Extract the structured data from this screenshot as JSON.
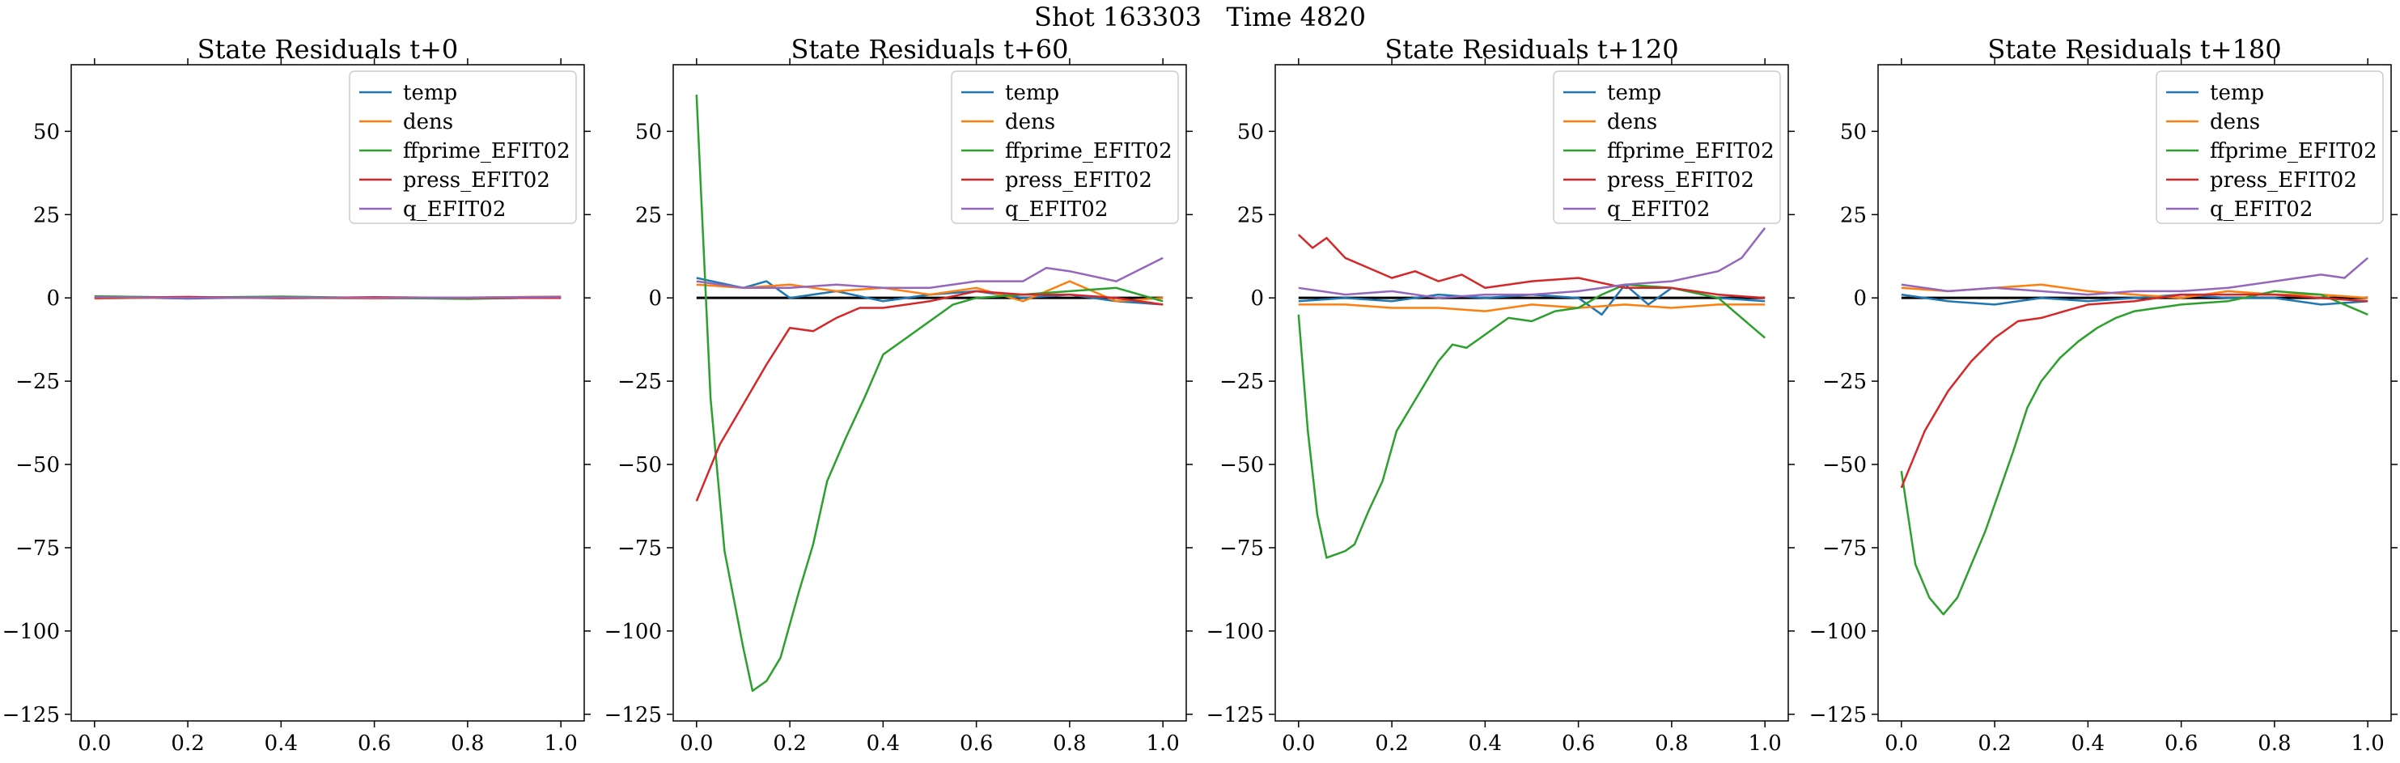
{
  "figure_title": "Shot 163303   Time 4820",
  "chart_data": [
    {
      "type": "line",
      "title": "State Residuals t+0",
      "xlabel": "",
      "ylabel": "",
      "xlim": [
        -0.05,
        1.05
      ],
      "ylim": [
        -127,
        70
      ],
      "xticks": [
        "0.0",
        "0.2",
        "0.4",
        "0.6",
        "0.8",
        "1.0"
      ],
      "yticks": [
        "50",
        "25",
        "0",
        "−25",
        "−50",
        "−75",
        "−100",
        "−125"
      ],
      "grid": false,
      "legend": "top-right",
      "series": [
        {
          "name": "temp",
          "color": "#1f77b4",
          "x": [
            0,
            0.2,
            0.4,
            0.6,
            0.8,
            1.0
          ],
          "y": [
            0.3,
            -0.2,
            0.2,
            0.0,
            -0.2,
            0.1
          ]
        },
        {
          "name": "dens",
          "color": "#ff7f0e",
          "x": [
            0,
            0.2,
            0.4,
            0.6,
            0.8,
            1.0
          ],
          "y": [
            -0.2,
            0.1,
            0.0,
            -0.2,
            0.1,
            0.4
          ]
        },
        {
          "name": "ffprime_EFIT02",
          "color": "#2ca02c",
          "x": [
            0,
            0.2,
            0.4,
            0.6,
            0.8,
            1.0
          ],
          "y": [
            0.5,
            0.1,
            0.4,
            0.0,
            -0.3,
            0.2
          ]
        },
        {
          "name": "press_EFIT02",
          "color": "#d62728",
          "x": [
            0,
            0.2,
            0.4,
            0.6,
            0.8,
            1.0
          ],
          "y": [
            0.0,
            0.3,
            -0.1,
            0.2,
            0.0,
            0.0
          ]
        },
        {
          "name": "q_EFIT02",
          "color": "#9467bd",
          "x": [
            0,
            0.2,
            0.4,
            0.6,
            0.8,
            1.0
          ],
          "y": [
            0.2,
            0.0,
            0.1,
            0.0,
            0.1,
            0.3
          ]
        }
      ]
    },
    {
      "type": "line",
      "title": "State Residuals t+60",
      "xlabel": "",
      "ylabel": "",
      "xlim": [
        -0.05,
        1.05
      ],
      "ylim": [
        -127,
        70
      ],
      "xticks": [
        "0.0",
        "0.2",
        "0.4",
        "0.6",
        "0.8",
        "1.0"
      ],
      "yticks": [
        "50",
        "25",
        "0",
        "−25",
        "−50",
        "−75",
        "−100",
        "−125"
      ],
      "grid": false,
      "legend": "top-right",
      "series": [
        {
          "name": "temp",
          "color": "#1f77b4",
          "x": [
            0,
            0.1,
            0.15,
            0.2,
            0.3,
            0.4,
            0.5,
            0.6,
            0.7,
            0.8,
            0.9,
            1.0
          ],
          "y": [
            6,
            3,
            5,
            0,
            2,
            -1,
            1,
            2,
            0,
            1,
            -1,
            -2
          ]
        },
        {
          "name": "dens",
          "color": "#ff7f0e",
          "x": [
            0,
            0.1,
            0.2,
            0.3,
            0.4,
            0.5,
            0.6,
            0.7,
            0.8,
            0.9,
            1.0
          ],
          "y": [
            4,
            3,
            4,
            2,
            3,
            1,
            3,
            -1,
            5,
            -1,
            0
          ]
        },
        {
          "name": "ffprime_EFIT02",
          "color": "#2ca02c",
          "x": [
            0,
            0.03,
            0.06,
            0.1,
            0.12,
            0.15,
            0.18,
            0.22,
            0.25,
            0.28,
            0.32,
            0.36,
            0.4,
            0.45,
            0.5,
            0.55,
            0.6,
            0.7,
            0.8,
            0.9,
            1.0
          ],
          "y": [
            61,
            -30,
            -76,
            -105,
            -118,
            -115,
            -108,
            -88,
            -74,
            -55,
            -42,
            -30,
            -17,
            -12,
            -7,
            -2,
            0,
            1,
            2,
            3,
            -1
          ]
        },
        {
          "name": "press_EFIT02",
          "color": "#d62728",
          "x": [
            0,
            0.05,
            0.1,
            0.15,
            0.2,
            0.25,
            0.3,
            0.35,
            0.4,
            0.5,
            0.6,
            0.7,
            0.8,
            0.9,
            1.0
          ],
          "y": [
            -61,
            -44,
            -32,
            -20,
            -9,
            -10,
            -6,
            -3,
            -3,
            -1,
            2,
            1,
            1,
            0,
            -2
          ]
        },
        {
          "name": "q_EFIT02",
          "color": "#9467bd",
          "x": [
            0,
            0.1,
            0.2,
            0.3,
            0.4,
            0.5,
            0.6,
            0.7,
            0.75,
            0.8,
            0.9,
            1.0
          ],
          "y": [
            5,
            3,
            3,
            4,
            3,
            3,
            5,
            5,
            9,
            8,
            5,
            12
          ]
        }
      ]
    },
    {
      "type": "line",
      "title": "State Residuals t+120",
      "xlabel": "",
      "ylabel": "",
      "xlim": [
        -0.05,
        1.05
      ],
      "ylim": [
        -127,
        70
      ],
      "xticks": [
        "0.0",
        "0.2",
        "0.4",
        "0.6",
        "0.8",
        "1.0"
      ],
      "yticks": [
        "50",
        "25",
        "0",
        "−25",
        "−50",
        "−75",
        "−100",
        "−125"
      ],
      "grid": false,
      "legend": "top-right",
      "series": [
        {
          "name": "temp",
          "color": "#1f77b4",
          "x": [
            0,
            0.1,
            0.2,
            0.3,
            0.4,
            0.5,
            0.6,
            0.65,
            0.7,
            0.75,
            0.8,
            0.9,
            1.0
          ],
          "y": [
            -1,
            0,
            -1,
            1,
            0,
            1,
            0,
            -5,
            4,
            -2,
            3,
            0,
            -1
          ]
        },
        {
          "name": "dens",
          "color": "#ff7f0e",
          "x": [
            0,
            0.1,
            0.2,
            0.3,
            0.4,
            0.5,
            0.6,
            0.7,
            0.8,
            0.9,
            1.0
          ],
          "y": [
            -2,
            -2,
            -3,
            -3,
            -4,
            -2,
            -3,
            -2,
            -3,
            -2,
            -2
          ]
        },
        {
          "name": "ffprime_EFIT02",
          "color": "#2ca02c",
          "x": [
            0,
            0.02,
            0.04,
            0.06,
            0.08,
            0.1,
            0.12,
            0.15,
            0.18,
            0.21,
            0.24,
            0.27,
            0.3,
            0.33,
            0.36,
            0.4,
            0.45,
            0.5,
            0.55,
            0.6,
            0.65,
            0.7,
            0.8,
            0.9,
            1.0
          ],
          "y": [
            -5,
            -40,
            -65,
            -78,
            -77,
            -76,
            -74,
            -64,
            -55,
            -40,
            -33,
            -26,
            -19,
            -14,
            -15,
            -11,
            -6,
            -7,
            -4,
            -3,
            1,
            4,
            3,
            0,
            -12
          ]
        },
        {
          "name": "press_EFIT02",
          "color": "#d62728",
          "x": [
            0,
            0.03,
            0.06,
            0.1,
            0.15,
            0.2,
            0.25,
            0.3,
            0.35,
            0.4,
            0.5,
            0.6,
            0.7,
            0.8,
            0.9,
            1.0
          ],
          "y": [
            19,
            15,
            18,
            12,
            9,
            6,
            8,
            5,
            7,
            3,
            5,
            6,
            3,
            3,
            1,
            0
          ]
        },
        {
          "name": "q_EFIT02",
          "color": "#9467bd",
          "x": [
            0,
            0.1,
            0.2,
            0.3,
            0.4,
            0.5,
            0.6,
            0.7,
            0.8,
            0.9,
            0.95,
            1.0
          ],
          "y": [
            3,
            1,
            2,
            0,
            1,
            1,
            2,
            4,
            5,
            8,
            12,
            21
          ]
        }
      ]
    },
    {
      "type": "line",
      "title": "State Residuals t+180",
      "xlabel": "",
      "ylabel": "",
      "xlim": [
        -0.05,
        1.05
      ],
      "ylim": [
        -127,
        70
      ],
      "xticks": [
        "0.0",
        "0.2",
        "0.4",
        "0.6",
        "0.8",
        "1.0"
      ],
      "yticks": [
        "50",
        "25",
        "0",
        "−25",
        "−50",
        "−75",
        "−100",
        "−125"
      ],
      "grid": false,
      "legend": "top-right",
      "series": [
        {
          "name": "temp",
          "color": "#1f77b4",
          "x": [
            0,
            0.1,
            0.2,
            0.3,
            0.4,
            0.5,
            0.6,
            0.7,
            0.8,
            0.9,
            1.0
          ],
          "y": [
            1,
            -1,
            -2,
            0,
            -1,
            0,
            1,
            0,
            0,
            -2,
            -1
          ]
        },
        {
          "name": "dens",
          "color": "#ff7f0e",
          "x": [
            0,
            0.1,
            0.2,
            0.3,
            0.4,
            0.5,
            0.6,
            0.7,
            0.8,
            0.9,
            1.0
          ],
          "y": [
            3,
            2,
            3,
            4,
            2,
            1,
            0,
            2,
            1,
            1,
            0
          ]
        },
        {
          "name": "ffprime_EFIT02",
          "color": "#2ca02c",
          "x": [
            0,
            0.03,
            0.06,
            0.09,
            0.12,
            0.15,
            0.18,
            0.21,
            0.24,
            0.27,
            0.3,
            0.34,
            0.38,
            0.42,
            0.46,
            0.5,
            0.55,
            0.6,
            0.7,
            0.8,
            0.9,
            1.0
          ],
          "y": [
            -52,
            -80,
            -90,
            -95,
            -90,
            -80,
            -70,
            -58,
            -46,
            -33,
            -25,
            -18,
            -13,
            -9,
            -6,
            -4,
            -3,
            -2,
            -1,
            2,
            1,
            -5
          ]
        },
        {
          "name": "press_EFIT02",
          "color": "#d62728",
          "x": [
            0,
            0.05,
            0.1,
            0.15,
            0.2,
            0.25,
            0.3,
            0.35,
            0.4,
            0.5,
            0.6,
            0.7,
            0.8,
            0.9,
            1.0
          ],
          "y": [
            -57,
            -40,
            -28,
            -19,
            -12,
            -7,
            -6,
            -4,
            -2,
            -1,
            1,
            1,
            1,
            0,
            -1
          ]
        },
        {
          "name": "q_EFIT02",
          "color": "#9467bd",
          "x": [
            0,
            0.1,
            0.2,
            0.3,
            0.4,
            0.5,
            0.6,
            0.7,
            0.8,
            0.9,
            0.95,
            1.0
          ],
          "y": [
            4,
            2,
            3,
            2,
            1,
            2,
            2,
            3,
            5,
            7,
            6,
            12
          ]
        }
      ]
    }
  ]
}
